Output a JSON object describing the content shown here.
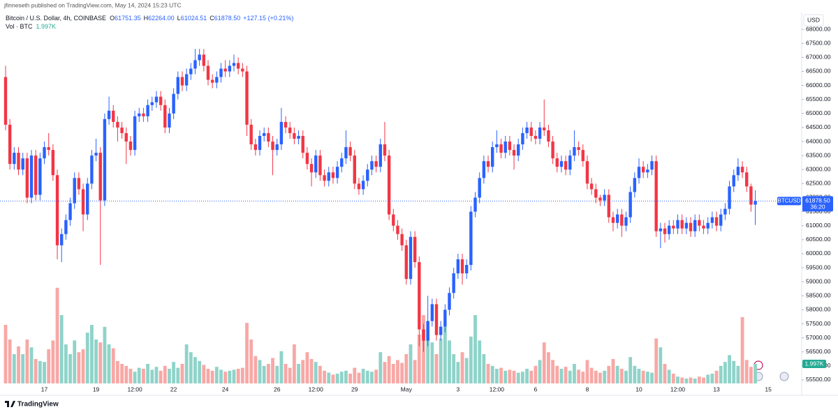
{
  "header": {
    "byline": "jfinneseth published on TradingView.com, May 14, 2024 15:23 UTC"
  },
  "legend": {
    "symbol": "Bitcoin / U.S. Dollar, 4h, COINBASE",
    "fields": [
      {
        "key": "O",
        "value": "61751.35"
      },
      {
        "key": "H",
        "value": "62264.00"
      },
      {
        "key": "L",
        "value": "61024.51"
      },
      {
        "key": "C",
        "value": "61878.50"
      }
    ],
    "change": "+127.15 (+0.21%)",
    "volume_title": "Vol · BTC"
  },
  "footer": {
    "brand": "TradingView"
  },
  "chart_data": {
    "type": "candlestick",
    "currency": "USD",
    "categories": [
      null,
      null,
      null,
      null,
      null,
      null,
      null,
      null,
      null,
      "17",
      null,
      null,
      null,
      null,
      null,
      null,
      null,
      null,
      null,
      null,
      null,
      "19",
      null,
      null,
      null,
      null,
      null,
      null,
      null,
      null,
      "12:00",
      null,
      null,
      null,
      null,
      null,
      null,
      null,
      null,
      "22",
      null,
      null,
      null,
      null,
      null,
      null,
      null,
      null,
      null,
      null,
      null,
      "24",
      null,
      null,
      null,
      null,
      null,
      null,
      null,
      null,
      null,
      null,
      null,
      "26",
      null,
      null,
      null,
      null,
      null,
      null,
      null,
      null,
      "12:00",
      null,
      null,
      null,
      null,
      null,
      null,
      null,
      null,
      "29",
      null,
      null,
      null,
      null,
      null,
      null,
      null,
      null,
      null,
      null,
      null,
      "May",
      null,
      null,
      null,
      null,
      null,
      null,
      null,
      null,
      null,
      null,
      null,
      "3",
      null,
      null,
      null,
      null,
      null,
      null,
      null,
      null,
      "12:00",
      null,
      null,
      null,
      null,
      null,
      null,
      null,
      null,
      "6",
      null,
      null,
      null,
      null,
      null,
      null,
      null,
      null,
      null,
      null,
      null,
      "8",
      null,
      null,
      null,
      null,
      null,
      null,
      null,
      null,
      null,
      null,
      null,
      "10",
      null,
      null,
      null,
      null,
      null,
      null,
      null,
      null,
      "12:00",
      null,
      null,
      null,
      null,
      null,
      null,
      null,
      null,
      "13",
      null,
      null,
      null,
      null,
      null,
      null,
      null,
      null,
      null,
      null,
      null,
      "15"
    ],
    "open": [
      66300,
      64600,
      63200,
      63600,
      63000,
      63400,
      62000,
      63500,
      62100,
      63400,
      63800,
      63700,
      62800,
      60300,
      60700,
      61200,
      61800,
      62700,
      62300,
      61400,
      62500,
      63500,
      63600,
      61900,
      64800,
      65100,
      64700,
      64500,
      64300,
      64000,
      63700,
      64900,
      65000,
      64900,
      65300,
      65400,
      65600,
      65300,
      64500,
      65000,
      65700,
      66300,
      66000,
      66400,
      66600,
      66900,
      67100,
      66700,
      66200,
      66100,
      66300,
      66600,
      66500,
      66700,
      66800,
      66600,
      66500,
      64600,
      63900,
      63700,
      64200,
      64300,
      64000,
      63700,
      63900,
      64700,
      64500,
      64300,
      64100,
      64200,
      63600,
      63200,
      62900,
      63500,
      62800,
      62600,
      62900,
      62700,
      63100,
      63400,
      63800,
      63500,
      62500,
      62300,
      62600,
      63000,
      63300,
      63100,
      63900,
      63500,
      61400,
      61000,
      60700,
      60300,
      59100,
      60600,
      59700,
      57300,
      56900,
      57600,
      58200,
      57100,
      57400,
      58000,
      58600,
      59300,
      59800,
      59300,
      59600,
      61500,
      62000,
      62700,
      63300,
      63100,
      63800,
      63900,
      63600,
      64000,
      63700,
      63500,
      63900,
      64300,
      64500,
      64200,
      64100,
      64500,
      64400,
      64000,
      63400,
      63100,
      63300,
      63000,
      63500,
      63800,
      63700,
      63300,
      62500,
      62300,
      62000,
      61900,
      62100,
      61300,
      61100,
      61400,
      61000,
      61300,
      62200,
      62700,
      63100,
      62900,
      63000,
      63300,
      60800,
      60900,
      60700,
      61000,
      60900,
      61200,
      60900,
      61100,
      60800,
      61200,
      61000,
      60900,
      61100,
      61300,
      61000,
      61400,
      61600,
      62400,
      62800,
      63100,
      62900,
      62400,
      61751.35,
      null,
      null,
      null
    ],
    "high": [
      66700,
      64800,
      63800,
      63800,
      63600,
      63600,
      63700,
      63700,
      63600,
      64000,
      64300,
      63900,
      63000,
      60900,
      61400,
      62000,
      62900,
      62900,
      62500,
      62700,
      63700,
      64100,
      63800,
      65000,
      65600,
      65300,
      64900,
      64700,
      64500,
      64200,
      65100,
      65200,
      65200,
      65500,
      65600,
      65800,
      65800,
      65500,
      65200,
      65900,
      66500,
      66500,
      66600,
      66800,
      67300,
      67300,
      67300,
      66900,
      66400,
      66500,
      66800,
      66900,
      66900,
      67100,
      67000,
      66800,
      66700,
      64800,
      64100,
      64400,
      64500,
      64500,
      64200,
      64100,
      65200,
      64900,
      64700,
      64500,
      64400,
      64400,
      63800,
      63400,
      63700,
      63700,
      63000,
      63100,
      63100,
      63300,
      63600,
      64400,
      64000,
      63700,
      62700,
      62800,
      63200,
      63500,
      63500,
      64100,
      64700,
      63700,
      61600,
      61200,
      60900,
      60500,
      60800,
      60800,
      59900,
      57500,
      58500,
      58400,
      58400,
      57600,
      58200,
      58800,
      59500,
      60000,
      60000,
      59800,
      61700,
      62200,
      62900,
      63500,
      63500,
      64000,
      64400,
      64100,
      64200,
      64200,
      63900,
      64100,
      64500,
      64700,
      64700,
      64400,
      64700,
      65500,
      64600,
      64200,
      63600,
      63500,
      63500,
      63700,
      64400,
      64000,
      63900,
      63500,
      62700,
      62500,
      62100,
      62300,
      62300,
      61500,
      61600,
      61600,
      61500,
      62400,
      62900,
      63400,
      63300,
      63200,
      63500,
      63500,
      61100,
      61100,
      61200,
      61200,
      61400,
      61400,
      61300,
      61300,
      61400,
      61400,
      61200,
      61300,
      61500,
      61500,
      61600,
      61800,
      62600,
      63000,
      63400,
      63300,
      63100,
      62500,
      62264,
      null,
      null,
      null
    ],
    "low": [
      64400,
      63000,
      63000,
      62800,
      62800,
      61800,
      61800,
      61900,
      61900,
      63200,
      63500,
      62600,
      59800,
      59700,
      60500,
      61000,
      61600,
      62100,
      60800,
      61200,
      62300,
      63300,
      59600,
      61700,
      64600,
      64500,
      64000,
      64100,
      63200,
      63500,
      63500,
      64700,
      64700,
      64700,
      65100,
      65200,
      65100,
      64300,
      64300,
      64800,
      65500,
      65800,
      65800,
      66200,
      66400,
      66700,
      66500,
      66000,
      65900,
      65900,
      66100,
      66300,
      66300,
      66500,
      66400,
      66300,
      64200,
      63700,
      63500,
      63500,
      64000,
      63800,
      62800,
      63500,
      63700,
      64300,
      64100,
      63900,
      63900,
      63400,
      63000,
      62400,
      62700,
      62600,
      62400,
      62400,
      62500,
      62500,
      62900,
      63200,
      63300,
      62300,
      62100,
      62100,
      62400,
      62800,
      62900,
      62900,
      63300,
      61200,
      60800,
      60500,
      60100,
      58900,
      58900,
      59500,
      56700,
      56500,
      56700,
      57400,
      56900,
      56900,
      57200,
      57800,
      58400,
      59100,
      58900,
      59100,
      59400,
      61300,
      61800,
      62500,
      62900,
      62900,
      63600,
      63400,
      63400,
      63500,
      63000,
      63300,
      63700,
      64100,
      64000,
      63900,
      63900,
      64200,
      63800,
      63200,
      62900,
      62900,
      62800,
      62800,
      63300,
      63500,
      63100,
      62300,
      62100,
      61800,
      61700,
      61700,
      61100,
      60800,
      60900,
      60600,
      60800,
      61100,
      62000,
      62500,
      62700,
      62700,
      62800,
      60600,
      60200,
      60400,
      60500,
      60700,
      60700,
      60700,
      60700,
      60600,
      60600,
      60800,
      60700,
      60700,
      60900,
      60800,
      60800,
      61200,
      61400,
      62200,
      62600,
      62700,
      62200,
      61500,
      61024.51,
      null,
      null,
      null
    ],
    "close": [
      64600,
      63200,
      63600,
      63000,
      63400,
      62000,
      63500,
      62100,
      63400,
      63800,
      63700,
      62800,
      60300,
      60700,
      61200,
      61800,
      62700,
      62300,
      61400,
      62500,
      63500,
      63600,
      61900,
      64800,
      65100,
      64700,
      64500,
      64300,
      64000,
      63700,
      64900,
      65000,
      64900,
      65300,
      65400,
      65600,
      65300,
      64500,
      65000,
      65700,
      66300,
      66000,
      66400,
      66600,
      66900,
      67100,
      66700,
      66200,
      66100,
      66300,
      66600,
      66500,
      66700,
      66800,
      66600,
      66500,
      64600,
      63900,
      63700,
      64200,
      64300,
      64000,
      63700,
      63900,
      64700,
      64500,
      64300,
      64100,
      64200,
      63600,
      63200,
      62900,
      63500,
      62800,
      62600,
      62900,
      62700,
      63100,
      63400,
      63800,
      63500,
      62500,
      62300,
      62600,
      63000,
      63300,
      63100,
      63900,
      63500,
      61400,
      61000,
      60700,
      60300,
      59100,
      60600,
      59700,
      57300,
      56900,
      57600,
      58200,
      57100,
      57400,
      58000,
      58600,
      59300,
      59800,
      59300,
      59600,
      61500,
      62000,
      62700,
      63300,
      63100,
      63800,
      63900,
      63600,
      64000,
      63700,
      63500,
      63900,
      64300,
      64500,
      64200,
      64100,
      64500,
      64400,
      64000,
      63400,
      63100,
      63300,
      63000,
      63500,
      63800,
      63700,
      63300,
      62500,
      62300,
      62000,
      61900,
      62100,
      61300,
      61100,
      61400,
      61000,
      61300,
      62200,
      62700,
      63100,
      62900,
      63000,
      63300,
      60800,
      60900,
      60700,
      61000,
      60900,
      61200,
      60900,
      61100,
      60800,
      61200,
      61000,
      60900,
      61100,
      61300,
      61000,
      61400,
      61600,
      62400,
      62800,
      63100,
      62900,
      62400,
      61751.35,
      61878.5,
      null,
      null,
      null
    ],
    "volume": [
      6000,
      4500,
      3000,
      3800,
      3000,
      4500,
      3700,
      2500,
      2300,
      2200,
      3500,
      4400,
      9800,
      7000,
      4000,
      3000,
      4400,
      3200,
      3500,
      5200,
      6000,
      4500,
      4200,
      5800,
      4000,
      3600,
      2300,
      2000,
      1800,
      1500,
      1200,
      1600,
      1500,
      2000,
      1400,
      1700,
      1300,
      1800,
      1500,
      2200,
      1600,
      2000,
      4000,
      3200,
      2700,
      2300,
      1900,
      1500,
      1300,
      1700,
      1400,
      1200,
      1300,
      1400,
      1500,
      1600,
      6200,
      4500,
      2800,
      2400,
      1800,
      2000,
      2600,
      1800,
      3300,
      2000,
      1600,
      4000,
      2000,
      2400,
      3200,
      2500,
      2200,
      1800,
      1300,
      1100,
      900,
      1000,
      1200,
      1300,
      1000,
      1600,
      1100,
      1500,
      1300,
      1200,
      1400,
      3200,
      2200,
      2800,
      2000,
      2400,
      2100,
      3000,
      4000,
      2400,
      5000,
      7000,
      5500,
      4200,
      3000,
      4600,
      5800,
      4400,
      3000,
      2200,
      3200,
      2600,
      4800,
      7000,
      4400,
      3000,
      2000,
      1800,
      1500,
      1600,
      1300,
      1400,
      1300,
      1100,
      1200,
      1500,
      1300,
      1800,
      2400,
      4200,
      3200,
      2400,
      1800,
      1500,
      1700,
      1300,
      2000,
      1400,
      1200,
      2400,
      1600,
      1300,
      1100,
      1300,
      1800,
      2500,
      1800,
      1500,
      1300,
      2700,
      1800,
      1500,
      1300,
      1200,
      1100,
      4600,
      3700,
      2000,
      1400,
      1000,
      700,
      600,
      500,
      600,
      500,
      700,
      600,
      900,
      1000,
      1300,
      1800,
      2200,
      2900,
      2300,
      1800,
      6800,
      2400,
      1700,
      1997,
      null,
      null,
      null
    ],
    "last_volume_label": "1.997K",
    "up_color": "#2962ff",
    "down_color": "#f23645",
    "volume_up_color": "#8fd3c9",
    "volume_down_color": "#f7a8a6",
    "ylim": [
      55375,
      68500
    ],
    "yticks": [
      {
        "value": 55500,
        "label": "55500.00"
      },
      {
        "value": 56000,
        "label": "56000.00"
      },
      {
        "value": 56500,
        "label": "56500.00"
      },
      {
        "value": 57000,
        "label": "57000.00"
      },
      {
        "value": 57500,
        "label": "57500.00"
      },
      {
        "value": 58000,
        "label": "58000.00"
      },
      {
        "value": 58500,
        "label": "58500.00"
      },
      {
        "value": 59000,
        "label": "59000.00"
      },
      {
        "value": 59500,
        "label": "59500.00"
      },
      {
        "value": 60000,
        "label": "60000.00"
      },
      {
        "value": 60500,
        "label": "60500.00"
      },
      {
        "value": 61000,
        "label": "61000.00"
      },
      {
        "value": 61500,
        "label": "61500.00"
      },
      {
        "value": 62000,
        "label": "62000.00"
      },
      {
        "value": 62500,
        "label": "62500.00"
      },
      {
        "value": 63000,
        "label": "63000.00"
      },
      {
        "value": 63500,
        "label": "63500.00"
      },
      {
        "value": 64000,
        "label": "64000.00"
      },
      {
        "value": 64500,
        "label": "64500.00"
      },
      {
        "value": 65000,
        "label": "65000.00"
      },
      {
        "value": 65500,
        "label": "65500.00"
      },
      {
        "value": 66000,
        "label": "66000.00"
      },
      {
        "value": 66500,
        "label": "66500.00"
      },
      {
        "value": 67000,
        "label": "67000.00"
      },
      {
        "value": 67500,
        "label": "67500.00"
      },
      {
        "value": 68000,
        "label": "68000.00"
      }
    ],
    "volume_ylim": [
      0,
      10000
    ],
    "grid": false,
    "last_price": {
      "symbol": "BTCUSD",
      "value": 61878.5,
      "label": "61878.50",
      "countdown": "36:20"
    }
  }
}
